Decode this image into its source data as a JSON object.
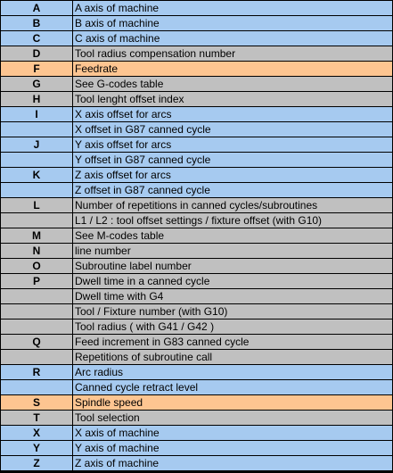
{
  "colors": {
    "blue": "#a6caf0",
    "gray": "#c0c0c0",
    "orange": "#fdc591",
    "grid": "#000000"
  },
  "rows": [
    {
      "letter": "A",
      "desc": "A axis of machine",
      "color": "blue"
    },
    {
      "letter": "B",
      "desc": "B axis of machine",
      "color": "blue"
    },
    {
      "letter": "C",
      "desc": "C axis of machine",
      "color": "blue"
    },
    {
      "letter": "D",
      "desc": "Tool radius compensation number",
      "color": "gray"
    },
    {
      "letter": "F",
      "desc": "Feedrate",
      "color": "orange"
    },
    {
      "letter": "G",
      "desc": "See G-codes table",
      "color": "gray"
    },
    {
      "letter": "H",
      "desc": "Tool lenght offset index",
      "color": "gray"
    },
    {
      "letter": "I",
      "desc": "X axis offset for arcs",
      "color": "blue"
    },
    {
      "letter": "",
      "desc": "X offset in G87 canned cycle",
      "color": "blue"
    },
    {
      "letter": "J",
      "desc": "Y axis offset for arcs",
      "color": "blue"
    },
    {
      "letter": "",
      "desc": "Y offset in G87 canned cycle",
      "color": "blue"
    },
    {
      "letter": "K",
      "desc": "Z axis offset for arcs",
      "color": "blue"
    },
    {
      "letter": "",
      "desc": "Z offset in G87 canned cycle",
      "color": "blue"
    },
    {
      "letter": "L",
      "desc": "Number of repetitions in canned cycles/subroutines",
      "color": "gray"
    },
    {
      "letter": "",
      "desc": "L1 / L2 : tool offset settings / fixture offset (with G10)",
      "color": "gray"
    },
    {
      "letter": "M",
      "desc": "See M-codes table",
      "color": "gray"
    },
    {
      "letter": "N",
      "desc": "line number",
      "color": "gray"
    },
    {
      "letter": "O",
      "desc": "Subroutine label number",
      "color": "gray"
    },
    {
      "letter": "P",
      "desc": "Dwell time in a canned cycle",
      "color": "gray"
    },
    {
      "letter": "",
      "desc": "Dwell time with G4",
      "color": "gray"
    },
    {
      "letter": "",
      "desc": "Tool / Fixture number (with G10)",
      "color": "gray"
    },
    {
      "letter": "",
      "desc": "Tool radius ( with G41 / G42 )",
      "color": "gray"
    },
    {
      "letter": "Q",
      "desc": "Feed increment in G83 canned cycle",
      "color": "gray"
    },
    {
      "letter": "",
      "desc": "Repetitions of subroutine call",
      "color": "gray"
    },
    {
      "letter": "R",
      "desc": "Arc radius",
      "color": "blue"
    },
    {
      "letter": "",
      "desc": "Canned cycle retract level",
      "color": "blue"
    },
    {
      "letter": "S",
      "desc": "Spindle speed",
      "color": "orange"
    },
    {
      "letter": "T",
      "desc": "Tool selection",
      "color": "gray"
    },
    {
      "letter": "X",
      "desc": "X axis of machine",
      "color": "blue"
    },
    {
      "letter": "Y",
      "desc": "Y axis of machine",
      "color": "blue"
    },
    {
      "letter": "Z",
      "desc": "Z axis of machine",
      "color": "blue"
    }
  ]
}
